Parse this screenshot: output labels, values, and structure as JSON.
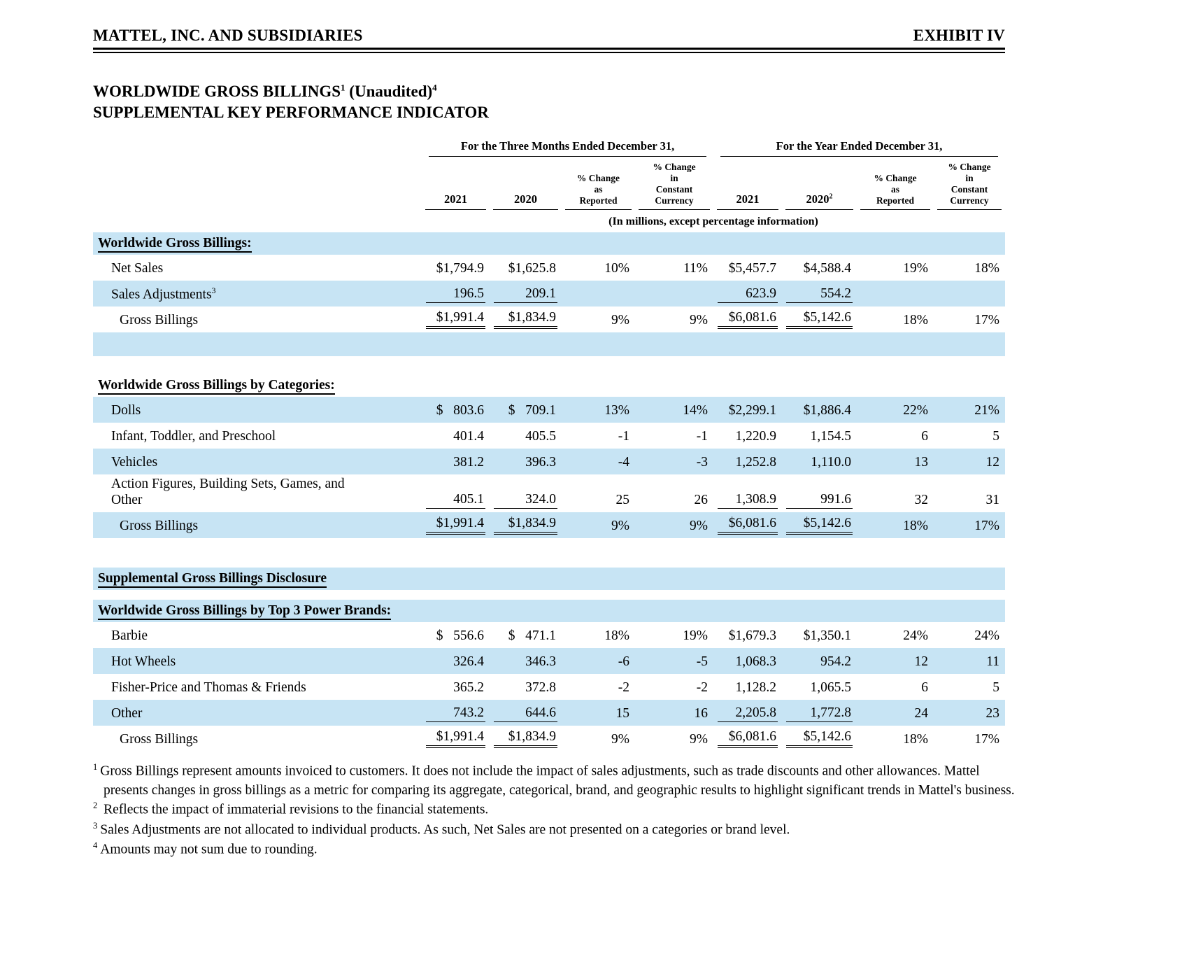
{
  "header": {
    "company": "MATTEL, INC. AND SUBSIDIARIES",
    "exhibit": "EXHIBIT IV"
  },
  "title": {
    "line1_main": "WORLDWIDE GROSS BILLINGS",
    "line1_sup_a": "1",
    "line1_rest": " (Unaudited)",
    "line1_sup_b": "4",
    "line2": "SUPPLEMENTAL KEY PERFORMANCE INDICATOR"
  },
  "table": {
    "group_headers": [
      "For the Three Months Ended December 31,",
      "For the Year Ended December 31,"
    ],
    "col_headers": [
      {
        "label": "2021",
        "sup": ""
      },
      {
        "label": "2020",
        "sup": ""
      },
      {
        "label": "% Change\nas\nReported",
        "sup": ""
      },
      {
        "label": "% Change\nin\nConstant\nCurrency",
        "sup": ""
      },
      {
        "label": "2021",
        "sup": ""
      },
      {
        "label": "2020",
        "sup": "2"
      },
      {
        "label": "% Change\nas\nReported",
        "sup": ""
      },
      {
        "label": "% Change\nin\nConstant\nCurrency",
        "sup": ""
      }
    ],
    "units_note": "(In millions, except percentage information)",
    "rows": [
      {
        "type": "section",
        "label": "Worldwide Gross Billings:",
        "shaded": true
      },
      {
        "type": "data",
        "label": "Net Sales",
        "indent": 1,
        "shaded": false,
        "rule": "none",
        "values": [
          "$1,794.9",
          "$1,625.8",
          "10%",
          "11%",
          "$5,457.7",
          "$4,588.4",
          "19%",
          "18%"
        ]
      },
      {
        "type": "data",
        "label": "Sales Adjustments",
        "label_sup": "3",
        "indent": 1,
        "shaded": true,
        "rule": "single",
        "values": [
          "196.5",
          "209.1",
          "",
          "",
          "623.9",
          "554.2",
          "",
          ""
        ]
      },
      {
        "type": "data",
        "label": "Gross Billings",
        "indent": 2,
        "shaded": false,
        "rule": "double",
        "values": [
          "$1,991.4",
          "$1,834.9",
          "9%",
          "9%",
          "$6,081.6",
          "$5,142.6",
          "18%",
          "17%"
        ]
      },
      {
        "type": "empty",
        "shaded": true
      },
      {
        "type": "spacer",
        "h": 26
      },
      {
        "type": "section",
        "label": "Worldwide Gross Billings by Categories:",
        "shaded": false
      },
      {
        "type": "data",
        "label": "Dolls",
        "indent": 1,
        "shaded": true,
        "rule": "none",
        "values": [
          "$   803.6",
          "$   709.1",
          "13%",
          "14%",
          "$2,299.1",
          "$1,886.4",
          "22%",
          "21%"
        ]
      },
      {
        "type": "data",
        "label": "Infant, Toddler, and Preschool",
        "indent": 1,
        "shaded": false,
        "rule": "none",
        "values": [
          "401.4",
          "405.5",
          "-1",
          "-1",
          "1,220.9",
          "1,154.5",
          "6",
          "5"
        ]
      },
      {
        "type": "data",
        "label": "Vehicles",
        "indent": 1,
        "shaded": true,
        "rule": "none",
        "values": [
          "381.2",
          "396.3",
          "-4",
          "-3",
          "1,252.8",
          "1,110.0",
          "13",
          "12"
        ]
      },
      {
        "type": "data",
        "label": "Action Figures, Building Sets, Games, and\nOther",
        "indent": 1,
        "shaded": false,
        "rule": "single",
        "values": [
          "405.1",
          "324.0",
          "25",
          "26",
          "1,308.9",
          "991.6",
          "32",
          "31"
        ]
      },
      {
        "type": "data",
        "label": "Gross Billings",
        "indent": 2,
        "shaded": true,
        "rule": "double",
        "values": [
          "$1,991.4",
          "$1,834.9",
          "9%",
          "9%",
          "$6,081.6",
          "$5,142.6",
          "18%",
          "17%"
        ]
      },
      {
        "type": "spacer",
        "h": 42
      },
      {
        "type": "section",
        "label": "Supplemental Gross Billings Disclosure",
        "shaded": true
      },
      {
        "type": "spacer",
        "h": 14
      },
      {
        "type": "section",
        "label": "Worldwide Gross Billings by Top 3 Power Brands:",
        "shaded": true
      },
      {
        "type": "data",
        "label": "Barbie",
        "indent": 1,
        "shaded": false,
        "rule": "none",
        "values": [
          "$   556.6",
          "$   471.1",
          "18%",
          "19%",
          "$1,679.3",
          "$1,350.1",
          "24%",
          "24%"
        ]
      },
      {
        "type": "data",
        "label": "Hot Wheels",
        "indent": 1,
        "shaded": true,
        "rule": "none",
        "values": [
          "326.4",
          "346.3",
          "-6",
          "-5",
          "1,068.3",
          "954.2",
          "12",
          "11"
        ]
      },
      {
        "type": "data",
        "label": "Fisher-Price and Thomas & Friends",
        "indent": 1,
        "shaded": false,
        "rule": "none",
        "values": [
          "365.2",
          "372.8",
          "-2",
          "-2",
          "1,128.2",
          "1,065.5",
          "6",
          "5"
        ]
      },
      {
        "type": "data",
        "label": "Other",
        "indent": 1,
        "shaded": true,
        "rule": "single",
        "values": [
          "743.2",
          "644.6",
          "15",
          "16",
          "2,205.8",
          "1,772.8",
          "24",
          "23"
        ]
      },
      {
        "type": "data",
        "label": "Gross Billings",
        "indent": 2,
        "shaded": false,
        "rule": "double",
        "values": [
          "$1,991.4",
          "$1,834.9",
          "9%",
          "9%",
          "$6,081.6",
          "$5,142.6",
          "18%",
          "17%"
        ]
      }
    ]
  },
  "footnotes": [
    {
      "sup": "1",
      "text": "Gross Billings represent amounts invoiced to customers. It does not include the impact of sales adjustments, such as trade discounts and other allowances. Mattel presents changes in gross billings as a metric for comparing its aggregate, categorical, brand, and geographic results to highlight significant trends in Mattel's business."
    },
    {
      "sup": "2",
      "text": " Reflects the impact of immaterial revisions to the financial statements."
    },
    {
      "sup": "3",
      "text": "Sales Adjustments are not allocated to individual products. As such, Net Sales are not presented on a categories or brand level."
    },
    {
      "sup": "4",
      "text": "Amounts may not sum due to rounding."
    }
  ]
}
